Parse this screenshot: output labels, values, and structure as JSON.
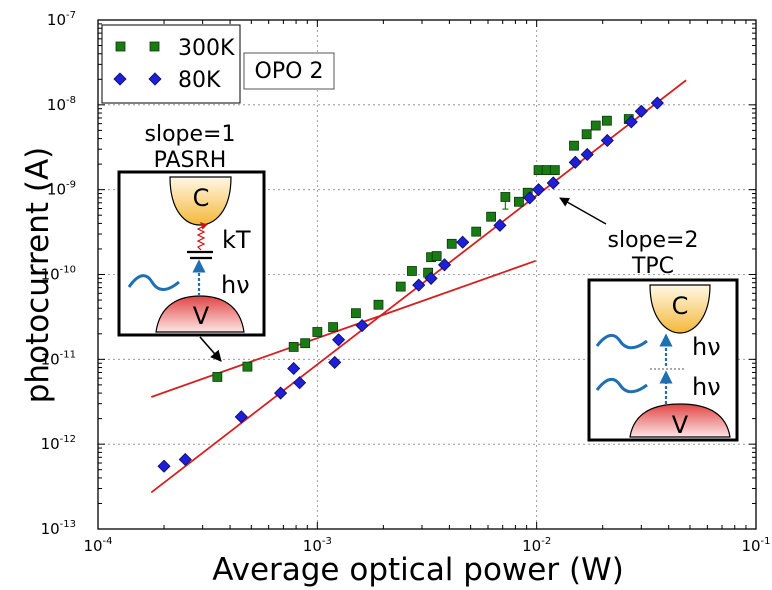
{
  "chart_data": {
    "type": "scatter",
    "xscale": "log",
    "yscale": "log",
    "xlim": [
      0.0001,
      0.1
    ],
    "ylim": [
      1e-13,
      1e-07
    ],
    "xlabel": "Average optical power (W)",
    "ylabel": "photocurrent (A)",
    "title": "",
    "grid": true,
    "legend_position": "top-left",
    "x_ticks": [
      {
        "value": 0.0001,
        "base": "10",
        "exp": "-4"
      },
      {
        "value": 0.001,
        "base": "10",
        "exp": "-3"
      },
      {
        "value": 0.01,
        "base": "10",
        "exp": "-2"
      },
      {
        "value": 0.1,
        "base": "10",
        "exp": "-1"
      }
    ],
    "y_ticks": [
      {
        "value": 1e-13,
        "base": "10",
        "exp": "-13"
      },
      {
        "value": 1e-12,
        "base": "10",
        "exp": "-12"
      },
      {
        "value": 1e-11,
        "base": "10",
        "exp": "-11"
      },
      {
        "value": 1e-10,
        "base": "10",
        "exp": "-10"
      },
      {
        "value": 1e-09,
        "base": "10",
        "exp": "-9"
      },
      {
        "value": 1e-08,
        "base": "10",
        "exp": "-8"
      },
      {
        "value": 1e-07,
        "base": "10",
        "exp": "-7"
      }
    ],
    "series": [
      {
        "name": "300K",
        "marker": "square",
        "color": "#1a7a14",
        "points": [
          [
            0.00035,
            6.2e-12
          ],
          [
            0.00048,
            8.2e-12
          ],
          [
            0.00078,
            1.4e-11
          ],
          [
            0.00088,
            1.55e-11
          ],
          [
            0.001,
            2.1e-11
          ],
          [
            0.00118,
            2.4e-11
          ],
          [
            0.0015,
            3.5e-11
          ],
          [
            0.0019,
            4.4e-11
          ],
          [
            0.0024,
            7.2e-11
          ],
          [
            0.0027,
            1.1e-10
          ],
          [
            0.0032,
            1.05e-10
          ],
          [
            0.0033,
            1.6e-10
          ],
          [
            0.0035,
            1.65e-10
          ],
          [
            0.0041,
            2.3e-10
          ],
          [
            0.0053,
            3.2e-10
          ],
          [
            0.0062,
            4.8e-10
          ],
          [
            0.0072,
            8.2e-10
          ],
          [
            0.0083,
            7.2e-10
          ],
          [
            0.0091,
            9.2e-10
          ],
          [
            0.0102,
            1.7e-09
          ],
          [
            0.0111,
            1.7e-09
          ],
          [
            0.0121,
            1.7e-09
          ],
          [
            0.0148,
            3.3e-09
          ],
          [
            0.0169,
            4.5e-09
          ],
          [
            0.0186,
            5.7e-09
          ],
          [
            0.0209,
            6.5e-09
          ],
          [
            0.0263,
            6.8e-09
          ]
        ],
        "error_bar": {
          "x": 0.0072,
          "y": 7.1e-10,
          "low": 5.9e-10,
          "high": 8.5e-10
        }
      },
      {
        "name": "80K",
        "marker": "diamond",
        "color": "#1f1fd6",
        "points": [
          [
            0.0002,
            5.5e-13
          ],
          [
            0.00025,
            6.6e-13
          ],
          [
            0.00045,
            2.1e-12
          ],
          [
            0.00068,
            4e-12
          ],
          [
            0.00078,
            7.8e-12
          ],
          [
            0.00083,
            5.3e-12
          ],
          [
            0.0012,
            9.2e-12
          ],
          [
            0.00125,
            1.7e-11
          ],
          [
            0.0016,
            2.5e-11
          ],
          [
            0.0029,
            7.5e-11
          ],
          [
            0.0033,
            9e-11
          ],
          [
            0.0038,
            1.3e-10
          ],
          [
            0.0046,
            2.4e-10
          ],
          [
            0.0068,
            3.8e-10
          ],
          [
            0.0093,
            8e-10
          ],
          [
            0.0102,
            1e-09
          ],
          [
            0.0119,
            1.2e-09
          ],
          [
            0.015,
            2.1e-09
          ],
          [
            0.017,
            2.6e-09
          ],
          [
            0.021,
            3.8e-09
          ],
          [
            0.027,
            6.3e-09
          ],
          [
            0.03,
            8.4e-09
          ],
          [
            0.0355,
            1.05e-08
          ]
        ]
      }
    ],
    "fit_lines": [
      {
        "slope_label": "slope=1",
        "color": "#d42020",
        "x": [
          0.000175,
          0.0099
        ],
        "y": [
          3.6e-12,
          1.45e-10
        ]
      },
      {
        "slope_label": "slope=2",
        "color": "#d42020",
        "x": [
          0.000175,
          0.048
        ],
        "y": [
          2.7e-13,
          1.95e-08
        ]
      }
    ],
    "annotations": {
      "opo": "OPO 2",
      "slope1": "slope=1",
      "slope1_name": "PASRH",
      "slope2": "slope=2",
      "slope2_name": "TPC"
    }
  },
  "inset_left": {
    "conduction": "C",
    "valence": "V",
    "kt": "kT",
    "hv": "hν",
    "colors": {
      "conduction": "#f4b83a",
      "valence": "#e44a4a",
      "photon": "#1f6fb2",
      "thermal": "#d01010"
    }
  },
  "inset_right": {
    "conduction": "C",
    "valence": "V",
    "hv1": "hν",
    "hv2": "hν"
  }
}
